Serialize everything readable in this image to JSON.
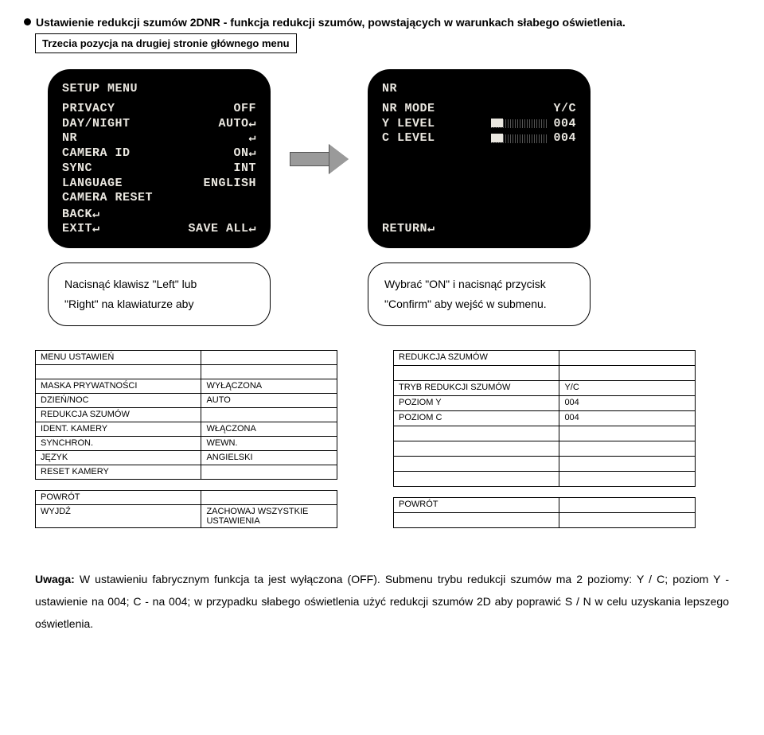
{
  "heading": "Ustawienie redukcji szumów 2DNR - funkcja redukcji szumów, powstających w warunkach słabego oświetlenia.",
  "subheading": "Trzecia pozycja na drugiej stronie głównego menu",
  "screen_left": {
    "title": "SETUP MENU",
    "rows": [
      {
        "label": "PRIVACY",
        "value": "OFF"
      },
      {
        "label": "DAY/NIGHT",
        "value": "AUTO↵"
      },
      {
        "label": "NR",
        "value": "↵"
      },
      {
        "label": "CAMERA ID",
        "value": "ON↵"
      },
      {
        "label": "SYNC",
        "value": "INT"
      },
      {
        "label": "LANGUAGE",
        "value": "ENGLISH"
      },
      {
        "label": "CAMERA RESET",
        "value": ""
      }
    ],
    "bottom": [
      {
        "label": "BACK↵",
        "value": ""
      },
      {
        "label": "EXIT↵",
        "value": "SAVE ALL↵"
      }
    ]
  },
  "screen_right": {
    "title": "NR",
    "rows": [
      {
        "label": "NR MODE",
        "value": "Y/C"
      },
      {
        "label": "Y LEVEL",
        "value": "004",
        "slider": true
      },
      {
        "label": "C LEVEL",
        "value": "004",
        "slider": true
      }
    ],
    "bottom": [
      {
        "label": "RETURN↵",
        "value": ""
      }
    ]
  },
  "caption_left": {
    "line1": "Nacisnąć klawisz \"Left\" lub",
    "line2": "\"Right\" na klawiaturze aby"
  },
  "caption_right": {
    "line1": "Wybrać \"ON\" i nacisnąć przycisk",
    "line2": "\"Confirm\" aby wejść w submenu."
  },
  "table_left": {
    "title": "MENU USTAWIEŃ",
    "rows": [
      {
        "label": "MASKA PRYWATNOŚCI",
        "value": "WYŁĄCZONA"
      },
      {
        "label": "DZIEŃ/NOC",
        "value": "AUTO"
      },
      {
        "label": "REDUKCJA SZUMÓW",
        "value": ""
      },
      {
        "label": "IDENT. KAMERY",
        "value": "WŁĄCZONA"
      },
      {
        "label": "SYNCHRON.",
        "value": "WEWN."
      },
      {
        "label": "JĘZYK",
        "value": "ANGIELSKI"
      },
      {
        "label": "RESET KAMERY",
        "value": ""
      }
    ],
    "bottom": [
      {
        "label": "POWRÓT",
        "value": ""
      },
      {
        "label": "WYJDŹ",
        "value": "ZACHOWAJ WSZYSTKIE USTAWIENIA"
      }
    ]
  },
  "table_right": {
    "title": "REDUKCJA SZUMÓW",
    "rows": [
      {
        "label": "TRYB REDUKCJI SZUMÓW",
        "value": "Y/C"
      },
      {
        "label": "POZIOM Y",
        "value": "004"
      },
      {
        "label": "POZIOM C",
        "value": "004"
      },
      {
        "label": "",
        "value": ""
      },
      {
        "label": "",
        "value": ""
      },
      {
        "label": "",
        "value": ""
      },
      {
        "label": "",
        "value": ""
      }
    ],
    "bottom": [
      {
        "label": "POWRÓT",
        "value": ""
      },
      {
        "label": "",
        "value": ""
      }
    ]
  },
  "bottom_note": {
    "prefix": "Uwaga:",
    "text": " W ustawieniu fabrycznym funkcja ta jest wyłączona (OFF). Submenu trybu redukcji szumów ma 2 poziomy: Y / C; poziom Y - ustawienie na 004; C - na 004; w przypadku słabego oświetlenia użyć redukcji szumów 2D aby poprawić S / N w celu uzyskania lepszego oświetlenia."
  }
}
